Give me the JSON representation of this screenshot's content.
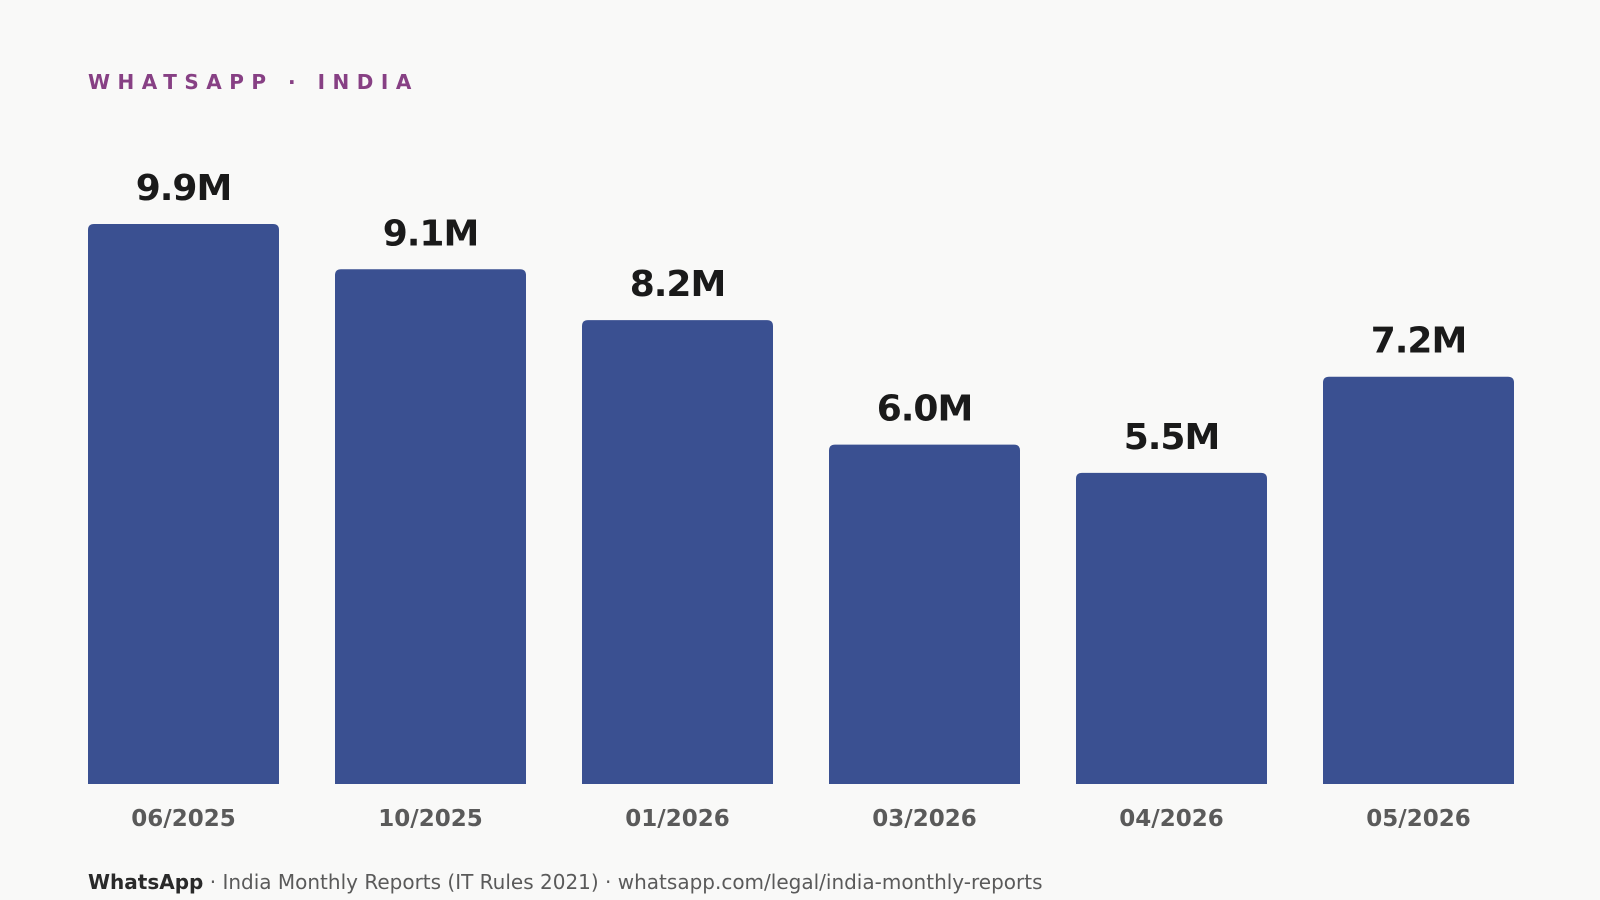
{
  "header": {
    "eyebrow": "WHATSAPP · INDIA"
  },
  "footer": {
    "brand": "WhatsApp",
    "separator": " · ",
    "source": "India Monthly Reports (IT Rules 2021) · whatsapp.com/legal/india-monthly-reports"
  },
  "colors": {
    "bar": "#3a5091",
    "accent": "#874084",
    "background": "#f9f9f8"
  },
  "chart_data": {
    "type": "bar",
    "categories": [
      "06/2025",
      "10/2025",
      "01/2026",
      "03/2026",
      "04/2026",
      "05/2026"
    ],
    "values": [
      9.9,
      9.1,
      8.2,
      6.0,
      5.5,
      7.2
    ],
    "value_labels": [
      "9.9M",
      "9.1M",
      "8.2M",
      "6.0M",
      "5.5M",
      "7.2M"
    ],
    "title": "",
    "xlabel": "",
    "ylabel": "",
    "ylim": [
      0,
      9.9
    ],
    "grid": false,
    "legend": "none"
  }
}
